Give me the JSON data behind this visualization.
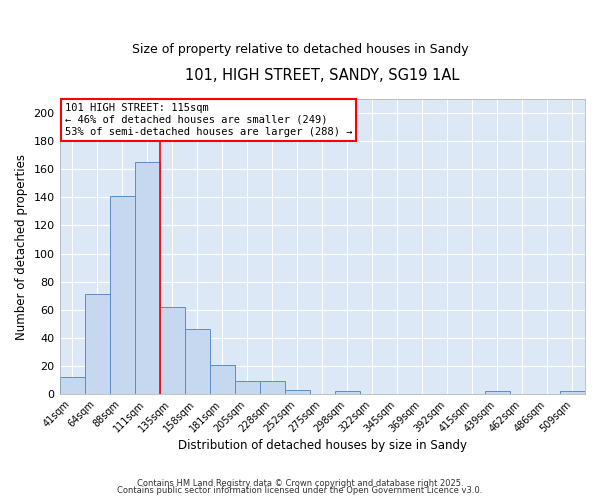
{
  "title": "101, HIGH STREET, SANDY, SG19 1AL",
  "subtitle": "Size of property relative to detached houses in Sandy",
  "xlabel": "Distribution of detached houses by size in Sandy",
  "ylabel": "Number of detached properties",
  "bar_color": "#c5d8f0",
  "bar_edge_color": "#5b8ec5",
  "background_color": "#dce8f5",
  "bar_values": [
    12,
    71,
    141,
    165,
    62,
    46,
    21,
    9,
    9,
    3,
    0,
    2,
    0,
    0,
    0,
    0,
    0,
    2,
    0,
    0,
    2
  ],
  "bin_labels": [
    "41sqm",
    "64sqm",
    "88sqm",
    "111sqm",
    "135sqm",
    "158sqm",
    "181sqm",
    "205sqm",
    "228sqm",
    "252sqm",
    "275sqm",
    "298sqm",
    "322sqm",
    "345sqm",
    "369sqm",
    "392sqm",
    "415sqm",
    "439sqm",
    "462sqm",
    "486sqm",
    "509sqm"
  ],
  "red_line_x": 3.5,
  "annotation_title": "101 HIGH STREET: 115sqm",
  "annotation_line1": "← 46% of detached houses are smaller (249)",
  "annotation_line2": "53% of semi-detached houses are larger (288) →",
  "ylim": [
    0,
    210
  ],
  "yticks": [
    0,
    20,
    40,
    60,
    80,
    100,
    120,
    140,
    160,
    180,
    200
  ],
  "footer_line1": "Contains HM Land Registry data © Crown copyright and database right 2025.",
  "footer_line2": "Contains public sector information licensed under the Open Government Licence v3.0."
}
